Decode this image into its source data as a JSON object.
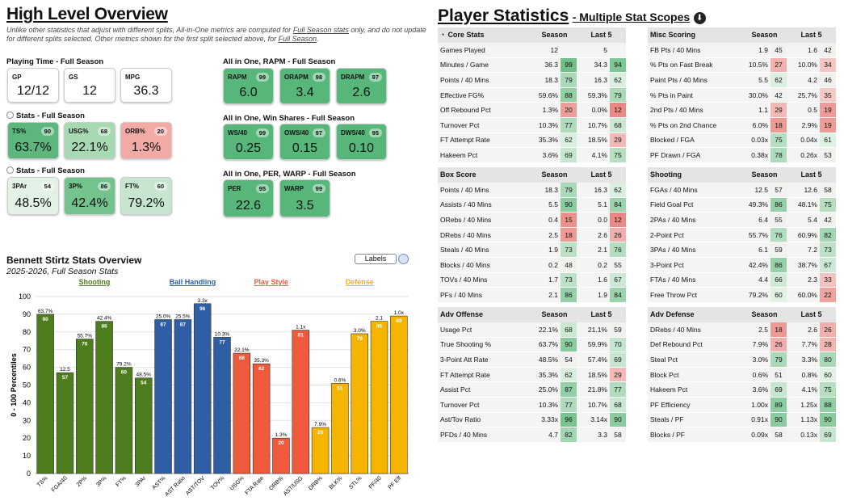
{
  "overview": {
    "title": "High Level Overview",
    "note_parts": [
      "Unlike other statistics that adjust with different splits, All-in-One metrics are computed for ",
      "Full Season stats",
      " only, and do not update for different splits selected. Other metrics shown for the first split selected above, for ",
      "Full Season",
      "."
    ],
    "playing_time": {
      "title": "Playing Time - Full Season",
      "tiles": [
        {
          "label": "GP",
          "value": "12/12"
        },
        {
          "label": "GS",
          "value": "12"
        },
        {
          "label": "MPG",
          "value": "36.3"
        }
      ]
    },
    "stats1": {
      "title": "Stats - Full Season",
      "tiles": [
        {
          "label": "TS%",
          "pct": "90",
          "value": "63.7%",
          "color": "#5cb77e"
        },
        {
          "label": "USG%",
          "pct": "68",
          "value": "22.1%",
          "color": "#a7d9b3"
        },
        {
          "label": "ORB%",
          "pct": "20",
          "value": "1.3%",
          "color": "#f2aaa6"
        }
      ]
    },
    "stats2": {
      "title": "Stats - Full Season",
      "tiles": [
        {
          "label": "3PAr",
          "pct": "54",
          "value": "48.5%",
          "color": "#e3f2e6"
        },
        {
          "label": "3P%",
          "pct": "86",
          "value": "42.4%",
          "color": "#74c28e"
        },
        {
          "label": "FT%",
          "pct": "60",
          "value": "79.2%",
          "color": "#c8e6cf"
        }
      ]
    },
    "rapm": {
      "title": "All in One, RAPM - Full Season",
      "tiles": [
        {
          "label": "RAPM",
          "pct": "99",
          "value": "6.0",
          "color": "#57b77a"
        },
        {
          "label": "ORAPM",
          "pct": "98",
          "value": "3.4",
          "color": "#57b77a"
        },
        {
          "label": "DRAPM",
          "pct": "97",
          "value": "2.6",
          "color": "#57b77a"
        }
      ]
    },
    "ws": {
      "title": "All in One, Win Shares - Full Season",
      "tiles": [
        {
          "label": "WS/40",
          "pct": "99",
          "value": "0.25",
          "color": "#57b77a"
        },
        {
          "label": "OWS/40",
          "pct": "97",
          "value": "0.15",
          "color": "#57b77a"
        },
        {
          "label": "DWS/40",
          "pct": "95",
          "value": "0.10",
          "color": "#57b77a"
        }
      ]
    },
    "per": {
      "title": "All in One, PER, WARP - Full Season",
      "tiles": [
        {
          "label": "PER",
          "pct": "95",
          "value": "22.6",
          "color": "#57b77a"
        },
        {
          "label": "WARP",
          "pct": "99",
          "value": "3.5",
          "color": "#57b77a"
        }
      ]
    }
  },
  "chart": {
    "title": "Bennett Stirtz Stats Overview",
    "subtitle": "2025-2026, Full Season Stats",
    "labels_button": "Labels",
    "groups": [
      {
        "name": "Shooting",
        "color": "#4e7d1e"
      },
      {
        "name": "Ball Handling",
        "color": "#2f5ea4"
      },
      {
        "name": "Play Style",
        "color": "#f05a3c"
      },
      {
        "name": "Defense",
        "color": "#f5b400"
      }
    ]
  },
  "chart_data": {
    "type": "bar",
    "ylabel": "0 - 100 Percentiles",
    "ylim": [
      0,
      100
    ],
    "yticks": [
      0,
      10,
      20,
      30,
      40,
      50,
      60,
      70,
      80,
      90,
      100
    ],
    "categories": [
      "TS%",
      "FGA/40",
      "2P%",
      "3P%",
      "FT%",
      "3PAr",
      "AST%",
      "AST Ratio",
      "AST/TOV",
      "TOV%",
      "USG%",
      "FTA Rate",
      "ORB%",
      "AST/USG",
      "DRB%",
      "BLK%",
      "STL%",
      "PF/40",
      "PF Eff"
    ],
    "values": [
      90,
      57,
      76,
      86,
      60,
      54,
      87,
      87,
      96,
      77,
      68,
      62,
      20,
      81,
      26,
      51,
      79,
      86,
      89
    ],
    "raw_labels": [
      "63.7%",
      "12.5",
      "55.7%",
      "42.4%",
      "79.2%",
      "48.5%",
      "25.0%",
      "25.5%",
      "3.3x",
      "10.3%",
      "22.1%",
      "35.3%",
      "1.3%",
      "1.1x",
      "7.9%",
      "0.6%",
      "3.0%",
      "2.1",
      "1.0x"
    ],
    "group_of": [
      0,
      0,
      0,
      0,
      0,
      0,
      1,
      1,
      1,
      1,
      2,
      2,
      2,
      2,
      3,
      3,
      3,
      3,
      3
    ],
    "grid": true
  },
  "player_stats": {
    "title": "Player Statistics",
    "subtitle": "- Multiple Stat Scopes",
    "col1": "Season",
    "col2": "Last 5",
    "tables": [
      {
        "header": "Core Stats",
        "rows": [
          [
            "Games Played",
            "12",
            "",
            "5",
            ""
          ],
          [
            "Minutes / Game",
            "36.3",
            "99",
            "34.3",
            "94"
          ],
          [
            "Points / 40 Mins",
            "18.3",
            "79",
            "16.3",
            "62"
          ],
          [
            "Effective FG%",
            "59.6%",
            "88",
            "59.3%",
            "79"
          ],
          [
            "Off Rebound Pct",
            "1.3%",
            "20",
            "0.0%",
            "12"
          ],
          [
            "Turnover Pct",
            "10.3%",
            "77",
            "10.7%",
            "68"
          ],
          [
            "FT Attempt Rate",
            "35.3%",
            "62",
            "18.5%",
            "29"
          ],
          [
            "Hakeem Pct",
            "3.6%",
            "69",
            "4.1%",
            "75"
          ]
        ]
      },
      {
        "header": "Misc Scoring",
        "rows": [
          [
            "FB Pts / 40 Mins",
            "1.9",
            "45",
            "1.6",
            "42"
          ],
          [
            "% Pts on Fast Break",
            "10.5%",
            "27",
            "10.0%",
            "34"
          ],
          [
            "Paint Pts / 40 Mins",
            "5.5",
            "62",
            "4.2",
            "46"
          ],
          [
            "% Pts in Paint",
            "30.0%",
            "42",
            "25.7%",
            "35"
          ],
          [
            "2nd Pts / 40 Mins",
            "1.1",
            "29",
            "0.5",
            "19"
          ],
          [
            "% Pts on 2nd Chance",
            "6.0%",
            "18",
            "2.9%",
            "19"
          ],
          [
            "Blocked / FGA",
            "0.03x",
            "75",
            "0.04x",
            "61"
          ],
          [
            "PF Drawn / FGA",
            "0.38x",
            "78",
            "0.26x",
            "53"
          ]
        ]
      },
      {
        "header": "Box Score",
        "rows": [
          [
            "Points / 40 Mins",
            "18.3",
            "79",
            "16.3",
            "62"
          ],
          [
            "Assists / 40 Mins",
            "5.5",
            "90",
            "5.1",
            "84"
          ],
          [
            "ORebs / 40 Mins",
            "0.4",
            "15",
            "0.0",
            "12"
          ],
          [
            "DRebs / 40 Mins",
            "2.5",
            "18",
            "2.6",
            "26"
          ],
          [
            "Steals / 40 Mins",
            "1.9",
            "73",
            "2.1",
            "76"
          ],
          [
            "Blocks / 40 Mins",
            "0.2",
            "48",
            "0.2",
            "55"
          ],
          [
            "TOVs / 40 Mins",
            "1.7",
            "73",
            "1.6",
            "67"
          ],
          [
            "PFs / 40 Mins",
            "2.1",
            "86",
            "1.9",
            "84"
          ]
        ]
      },
      {
        "header": "Shooting",
        "rows": [
          [
            "FGAs / 40 Mins",
            "12.5",
            "57",
            "12.6",
            "58"
          ],
          [
            "Field Goal Pct",
            "49.3%",
            "86",
            "48.1%",
            "75"
          ],
          [
            "2PAs / 40 Mins",
            "6.4",
            "55",
            "5.4",
            "42"
          ],
          [
            "2-Point Pct",
            "55.7%",
            "76",
            "60.9%",
            "82"
          ],
          [
            "3PAs / 40 Mins",
            "6.1",
            "59",
            "7.2",
            "73"
          ],
          [
            "3-Point Pct",
            "42.4%",
            "86",
            "38.7%",
            "67"
          ],
          [
            "FTAs / 40 Mins",
            "4.4",
            "66",
            "2.3",
            "33"
          ],
          [
            "Free Throw Pct",
            "79.2%",
            "60",
            "60.0%",
            "22"
          ]
        ]
      },
      {
        "header": "Adv Offense",
        "rows": [
          [
            "Usage Pct",
            "22.1%",
            "68",
            "21.1%",
            "59"
          ],
          [
            "True Shooting %",
            "63.7%",
            "90",
            "59.9%",
            "70"
          ],
          [
            "3-Point Att Rate",
            "48.5%",
            "54",
            "57.4%",
            "69"
          ],
          [
            "FT Attempt Rate",
            "35.3%",
            "62",
            "18.5%",
            "29"
          ],
          [
            "Assist Pct",
            "25.0%",
            "87",
            "21.8%",
            "77"
          ],
          [
            "Turnover Pct",
            "10.3%",
            "77",
            "10.7%",
            "68"
          ],
          [
            "Ast/Tov Ratio",
            "3.33x",
            "96",
            "3.14x",
            "90"
          ],
          [
            "PFDs / 40 Mins",
            "4.7",
            "82",
            "3.3",
            "58"
          ]
        ]
      },
      {
        "header": "Adv Defense",
        "rows": [
          [
            "DRebs / 40 Mins",
            "2.5",
            "18",
            "2.6",
            "26"
          ],
          [
            "Def Rebound Pct",
            "7.9%",
            "26",
            "7.7%",
            "28"
          ],
          [
            "Steal Pct",
            "3.0%",
            "79",
            "3.3%",
            "80"
          ],
          [
            "Block Pct",
            "0.6%",
            "51",
            "0.8%",
            "60"
          ],
          [
            "Hakeem Pct",
            "3.6%",
            "69",
            "4.1%",
            "75"
          ],
          [
            "PF Efficiency",
            "1.00x",
            "89",
            "1.25x",
            "88"
          ],
          [
            "Steals / PF",
            "0.91x",
            "90",
            "1.13x",
            "90"
          ],
          [
            "Blocks / PF",
            "0.09x",
            "58",
            "0.13x",
            "69"
          ]
        ]
      }
    ]
  }
}
